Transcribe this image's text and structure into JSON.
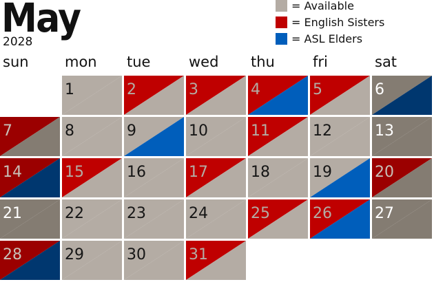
{
  "title": "May",
  "year": "2028",
  "colors": {
    "available": "#b4aca4",
    "english": "#bf0000",
    "asl": "#005ebb",
    "weekend_available": "#847c72",
    "weekend_english": "#9b0000",
    "weekend_asl": "#00376f"
  },
  "legend": [
    {
      "key": "available",
      "label": "= Available"
    },
    {
      "key": "english",
      "label": "= English Sisters"
    },
    {
      "key": "asl",
      "label": "= ASL Elders"
    }
  ],
  "weekdays": [
    "sun",
    "mon",
    "tue",
    "wed",
    "thu",
    "fri",
    "sat"
  ],
  "first_weekday": 1,
  "days": [
    {
      "d": "1",
      "top": "available",
      "bottom": "available"
    },
    {
      "d": "2",
      "top": "english",
      "bottom": "available"
    },
    {
      "d": "3",
      "top": "english",
      "bottom": "available"
    },
    {
      "d": "4",
      "top": "english",
      "bottom": "asl"
    },
    {
      "d": "5",
      "top": "english",
      "bottom": "available"
    },
    {
      "d": "6",
      "top": "available",
      "bottom": "asl"
    },
    {
      "d": "7",
      "top": "english",
      "bottom": "available"
    },
    {
      "d": "8",
      "top": "available",
      "bottom": "available"
    },
    {
      "d": "9",
      "top": "available",
      "bottom": "asl"
    },
    {
      "d": "10",
      "top": "available",
      "bottom": "available"
    },
    {
      "d": "11",
      "top": "english",
      "bottom": "available"
    },
    {
      "d": "12",
      "top": "available",
      "bottom": "available"
    },
    {
      "d": "13",
      "top": "available",
      "bottom": "available"
    },
    {
      "d": "14",
      "top": "english",
      "bottom": "asl"
    },
    {
      "d": "15",
      "top": "english",
      "bottom": "available"
    },
    {
      "d": "16",
      "top": "available",
      "bottom": "available"
    },
    {
      "d": "17",
      "top": "english",
      "bottom": "available"
    },
    {
      "d": "18",
      "top": "available",
      "bottom": "available"
    },
    {
      "d": "19",
      "top": "available",
      "bottom": "asl"
    },
    {
      "d": "20",
      "top": "english",
      "bottom": "available"
    },
    {
      "d": "21",
      "top": "available",
      "bottom": "available"
    },
    {
      "d": "22",
      "top": "available",
      "bottom": "available"
    },
    {
      "d": "23",
      "top": "available",
      "bottom": "available"
    },
    {
      "d": "24",
      "top": "available",
      "bottom": "available"
    },
    {
      "d": "25",
      "top": "english",
      "bottom": "available"
    },
    {
      "d": "26",
      "top": "english",
      "bottom": "asl"
    },
    {
      "d": "27",
      "top": "available",
      "bottom": "available"
    },
    {
      "d": "28",
      "top": "english",
      "bottom": "asl"
    },
    {
      "d": "29",
      "top": "available",
      "bottom": "available"
    },
    {
      "d": "30",
      "top": "available",
      "bottom": "available"
    },
    {
      "d": "31",
      "top": "english",
      "bottom": "available"
    }
  ]
}
